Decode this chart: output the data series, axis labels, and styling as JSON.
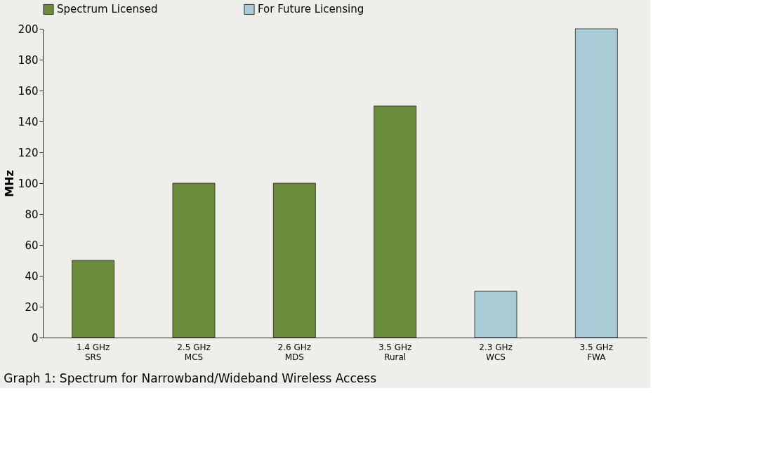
{
  "chart_data": {
    "type": "bar",
    "title": "Graph 1:  Spectrum for Narrowband/Wideband Wireless Access",
    "ylabel": "MHz",
    "categories": [
      "1.4 GHz\nSRS",
      "2.5 GHz\nMCS",
      "2.6 GHz\nMDS",
      "3.5 GHz\nRural",
      "2.3 GHz\nWCS",
      "3.5 GHz\nFWA"
    ],
    "series": [
      {
        "name": "Spectrum Licensed",
        "color": "#6b8c3a",
        "values": [
          50,
          100,
          100,
          150,
          null,
          null
        ]
      },
      {
        "name": "For Future Licensing",
        "color": "#a9cbd6",
        "values": [
          null,
          null,
          null,
          null,
          30,
          200
        ]
      }
    ],
    "ylim": [
      0,
      200
    ],
    "yticks": [
      0,
      20,
      40,
      60,
      80,
      100,
      120,
      140,
      160,
      180,
      200
    ],
    "grid": false,
    "legend": "top"
  }
}
